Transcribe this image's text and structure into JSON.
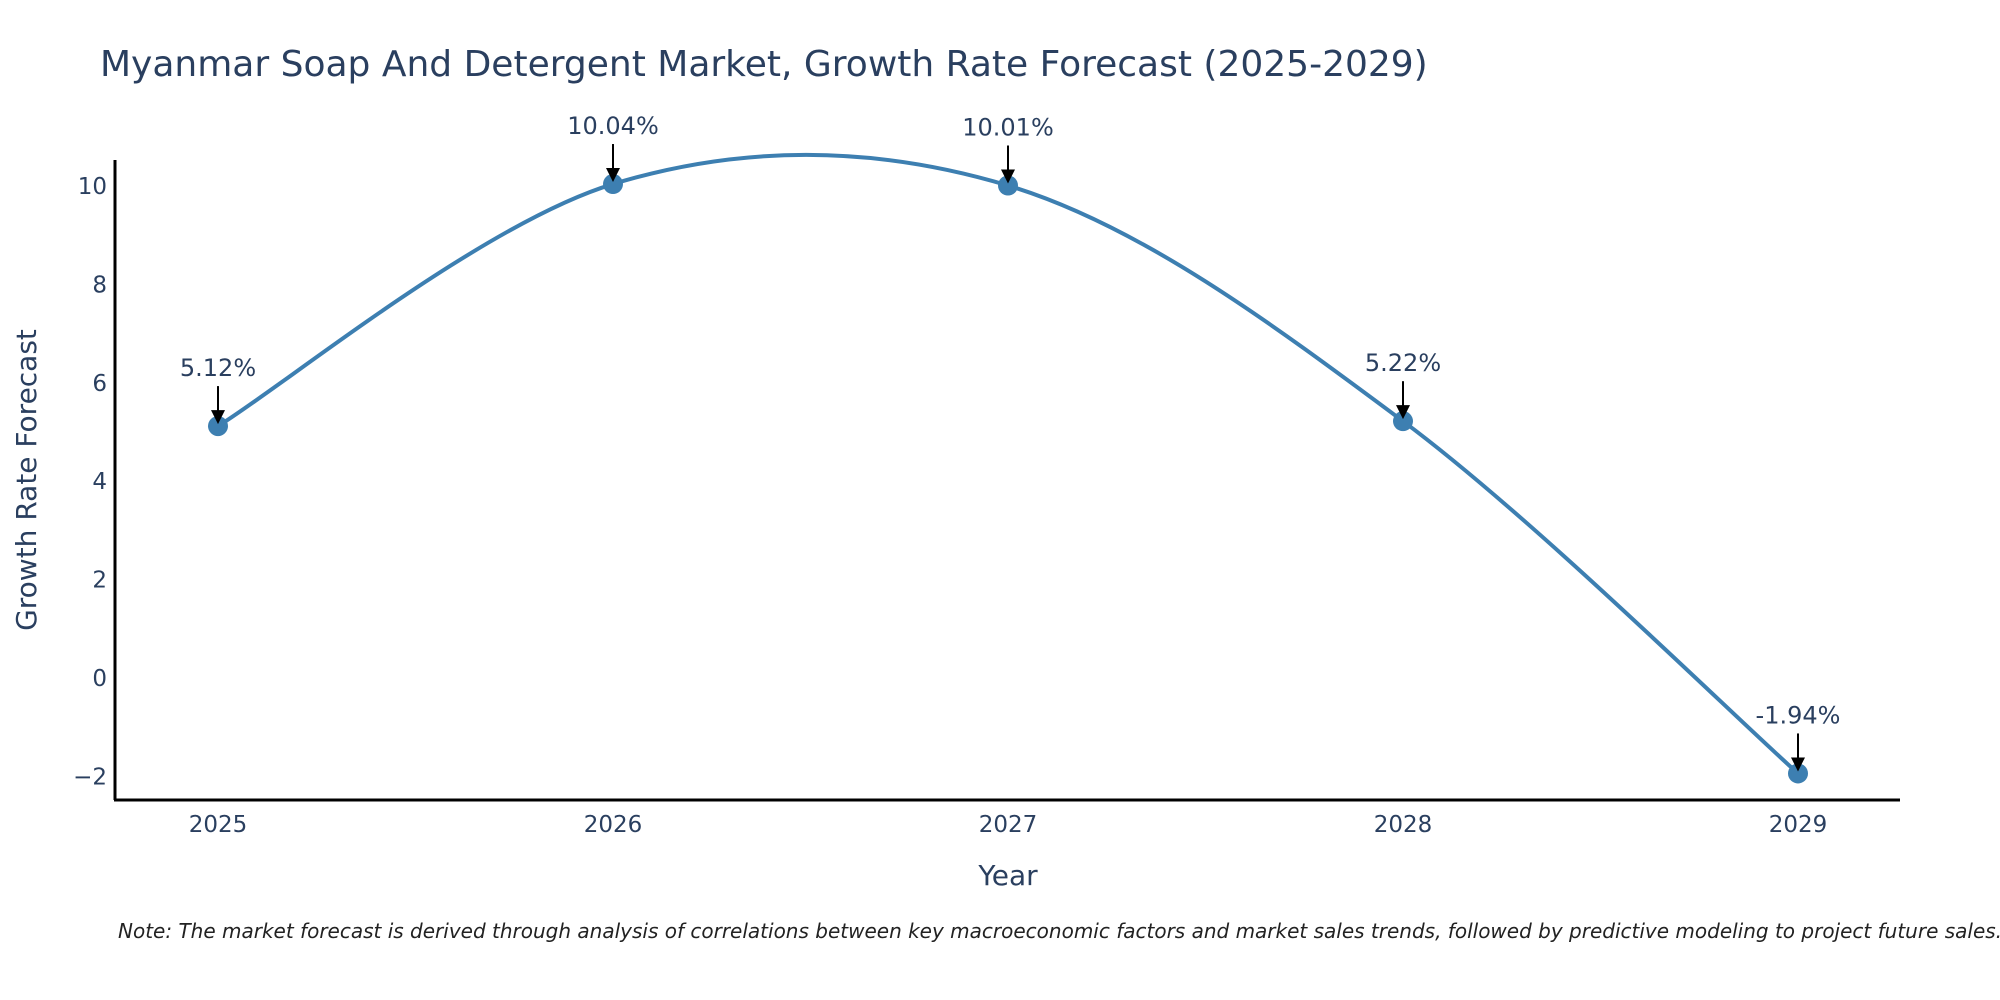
{
  "chart_data": {
    "type": "line",
    "title": "Myanmar Soap And Detergent Market, Growth Rate Forecast (2025-2029)",
    "xlabel": "Year",
    "ylabel": "Growth Rate Forecast",
    "categories": [
      "2025",
      "2026",
      "2027",
      "2028",
      "2029"
    ],
    "values": [
      5.12,
      10.04,
      10.01,
      5.22,
      -1.94
    ],
    "point_labels": [
      "5.12%",
      "10.04%",
      "10.01%",
      "5.22%",
      "-1.94%"
    ],
    "y_ticks": [
      -2,
      0,
      2,
      4,
      6,
      8,
      10
    ],
    "y_tick_labels": [
      "−2",
      "0",
      "2",
      "4",
      "6",
      "8",
      "10"
    ],
    "ylim": [
      -2.5,
      10.5
    ],
    "grid": false,
    "line_shape": "spline",
    "series_color": "#3d7fb1",
    "annotation_color": "#000000",
    "text_color": "#2a3f5f"
  },
  "footnote": "Note: The market forecast is derived through analysis of correlations between key macroeconomic factors and market sales trends, followed by predictive modeling to project future sales."
}
